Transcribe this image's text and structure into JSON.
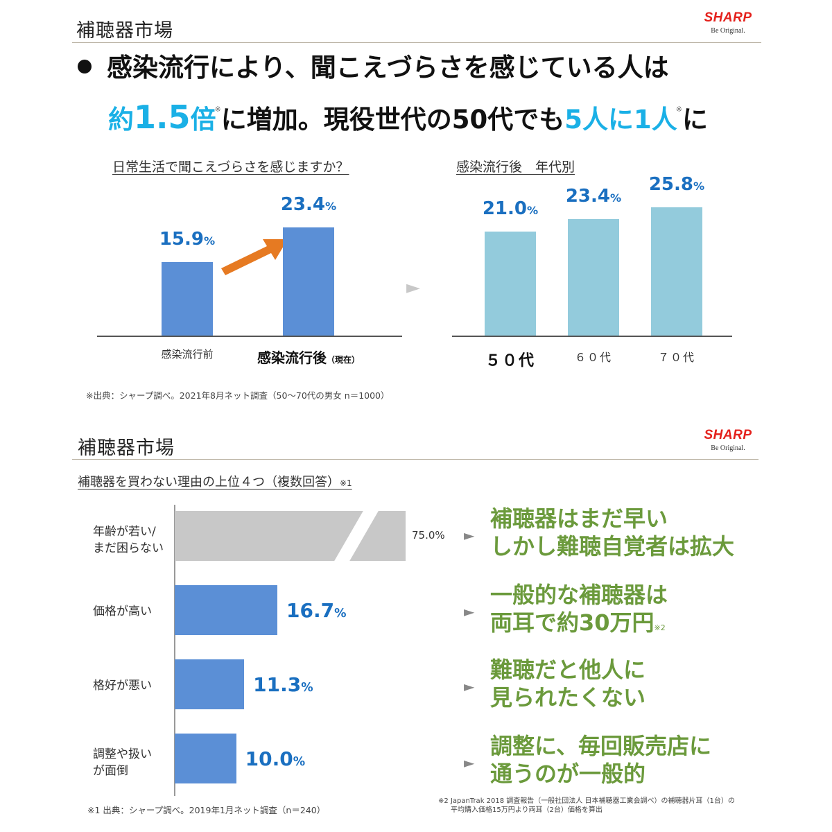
{
  "slide1": {
    "title": "補聴器市場",
    "logo": {
      "wordmark": "SHARP",
      "tagline": "Be Original."
    },
    "headline": {
      "line1": "感染流行により、聞こえづらさを感じている人は",
      "line2_a": "約",
      "line2_b": "1.5",
      "line2_c": "倍",
      "note_mark": "※",
      "line2_d": "に増加。現役世代の50代でも",
      "line2_e": "5人に1人",
      "line2_f": "に"
    },
    "chart_left_heading": "日常生活で聞こえづらさを感じますか？",
    "chart_right_heading": "感染流行後　年代別",
    "arrow_right": "►",
    "source": "※出典：シャープ調べ。2021年8月ネット調査（50〜70代の男女 n＝1000）"
  },
  "slide2": {
    "title": "補聴器市場",
    "logo": {
      "wordmark": "SHARP",
      "tagline": "Be Original."
    },
    "chart_heading": "補聴器を買わない理由の上位４つ（複数回答）",
    "chart_heading_note": "※1",
    "source": "※1 出典：シャープ調べ。2019年1月ネット調査（n＝240）",
    "footnote_line1": "※2 JapanTrak 2018 調査報告（一般社団法人 日本補聴器工業会調べ）の補聴器片耳（1台）の",
    "footnote_line2": "平均購入価格15万円より両耳（2台）価格を算出",
    "callouts": [
      {
        "line1": "補聴器はまだ早い",
        "line2": "しかし難聴自覚者は拡大",
        "note": ""
      },
      {
        "line1": "一般的な補聴器は",
        "line2": "両耳で約30万円",
        "note": "※2"
      },
      {
        "line1": "難聴だと他人に",
        "line2": "見られたくない",
        "note": ""
      },
      {
        "line1": "調整に、毎回販売店に",
        "line2": "通うのが一般的",
        "note": ""
      }
    ],
    "arrow": "►"
  },
  "colors": {
    "accent_cyan": "#1ab0e6",
    "value_blue": "#1a6fc0",
    "bar_blue": "#5b8fd6",
    "bar_light_blue": "#93cbdc",
    "bar_gray": "#c8c8c8",
    "callout_green": "#6b9a3c",
    "arrow_orange": "#e67a22",
    "logo_red": "#e4211c"
  },
  "chart_data": [
    {
      "type": "bar",
      "title": "日常生活で聞こえづらさを感じますか？",
      "categories": [
        "感染流行前",
        "感染流行後（現在）"
      ],
      "category_display": [
        {
          "main": "感染流行前",
          "sub": ""
        },
        {
          "main": "感染流行後",
          "sub": "（現在）"
        }
      ],
      "values": [
        15.9,
        23.4
      ],
      "labels": [
        "15.9",
        "23.4"
      ],
      "unit": "%",
      "ylim": [
        0,
        30
      ],
      "annotation": "orange increase arrow"
    },
    {
      "type": "bar",
      "title": "感染流行後　年代別",
      "categories": [
        "５０代",
        "６０代",
        "７０代"
      ],
      "values": [
        21.0,
        23.4,
        25.8
      ],
      "labels": [
        "21.0",
        "23.4",
        "25.8"
      ],
      "unit": "%",
      "ylim": [
        0,
        30
      ]
    },
    {
      "type": "bar",
      "orientation": "horizontal",
      "title": "補聴器を買わない理由の上位４つ（複数回答）",
      "categories": [
        "年齢が若い/\nまだ困らない",
        "価格が高い",
        "格好が悪い",
        "調整や扱い\nが面倒"
      ],
      "values": [
        75.0,
        16.7,
        11.3,
        10.0
      ],
      "labels": [
        "75.0",
        "16.7",
        "11.3",
        "10.0"
      ],
      "unit": "%",
      "broken_axis_on": "年齢が若い/\nまだ困らない"
    }
  ]
}
